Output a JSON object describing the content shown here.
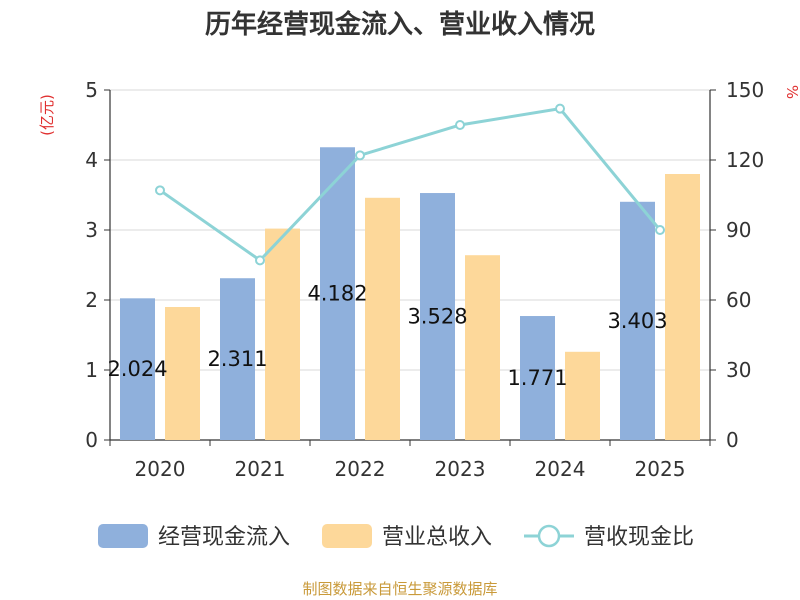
{
  "chart_data": {
    "type": "bar",
    "title": "历年经营现金流入、营业收入情况",
    "categories": [
      "2020",
      "2021",
      "2022",
      "2023",
      "2024",
      "2025"
    ],
    "y_left": {
      "label": "(亿元)",
      "range": [
        0,
        5
      ],
      "ticks": [
        "0",
        "1",
        "2",
        "3",
        "4",
        "5"
      ]
    },
    "y_right": {
      "label": "%",
      "range": [
        0,
        150
      ],
      "ticks": [
        "0",
        "30",
        "60",
        "90",
        "120",
        "150"
      ]
    },
    "series": [
      {
        "name": "经营现金流入",
        "type": "bar",
        "axis": "left",
        "color": "#8fb0dc",
        "values": [
          2.024,
          2.311,
          4.182,
          3.528,
          1.771,
          3.403
        ],
        "labels": [
          "2.024",
          "2.311",
          "4.182",
          "3.528",
          "1.771",
          "3.403"
        ]
      },
      {
        "name": "营业总收入",
        "type": "bar",
        "axis": "left",
        "color": "#fdd89a",
        "values": [
          1.9,
          3.02,
          3.46,
          2.64,
          1.26,
          3.8
        ]
      },
      {
        "name": "营收现金比",
        "type": "line",
        "axis": "right",
        "color": "#8dd3d6",
        "values": [
          107,
          77,
          122,
          135,
          142,
          90
        ]
      }
    ],
    "grid": true,
    "legend_position": "bottom"
  },
  "source": "制图数据来自恒生聚源数据库"
}
